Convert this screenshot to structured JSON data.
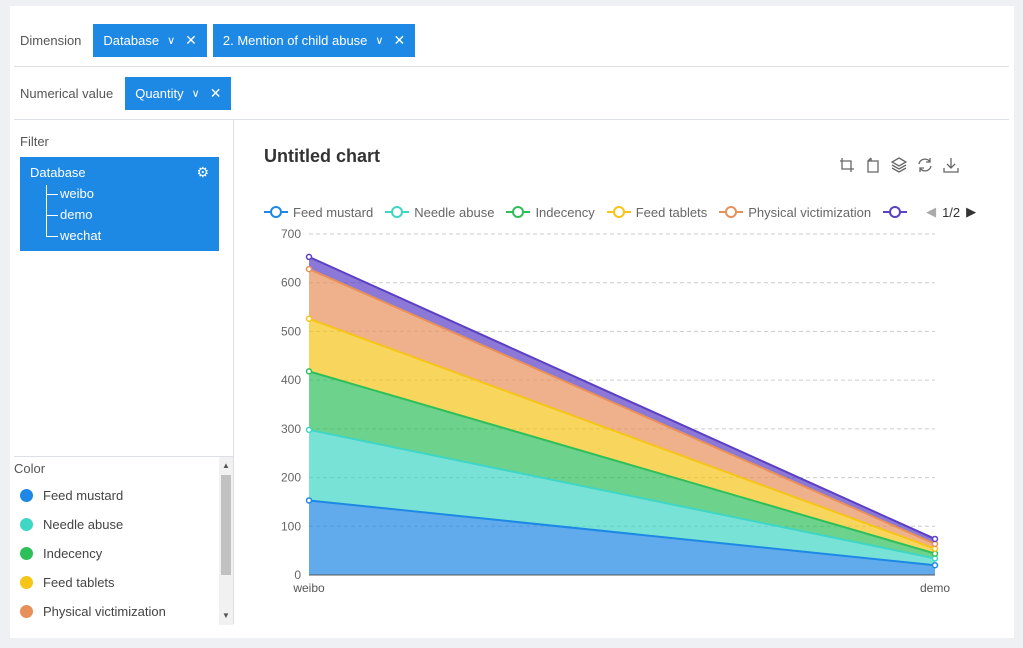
{
  "dimension": {
    "label": "Dimension",
    "pills": [
      "Database",
      "2. Mention of child abuse"
    ]
  },
  "numerical": {
    "label": "Numerical value",
    "pills": [
      "Quantity"
    ]
  },
  "filter": {
    "title": "Filter",
    "root": "Database",
    "children": [
      "weibo",
      "demo",
      "wechat"
    ]
  },
  "color_panel": {
    "title": "Color",
    "items": [
      {
        "label": "Feed mustard",
        "color": "#1e88e5"
      },
      {
        "label": "Needle abuse",
        "color": "#3fd6c5"
      },
      {
        "label": "Indecency",
        "color": "#2fbf5a"
      },
      {
        "label": "Feed tablets",
        "color": "#f5c518"
      },
      {
        "label": "Physical victimization",
        "color": "#e8905a"
      }
    ]
  },
  "toolbar": {
    "icons": [
      "zoom-icon",
      "zoom-reset-icon",
      "data-view-icon",
      "refresh-icon",
      "download-icon"
    ]
  },
  "legend_pager": "1/2",
  "chart_data": {
    "type": "area",
    "stacked": true,
    "title": "Untitled chart",
    "categories": [
      "weibo",
      "demo"
    ],
    "ylim": [
      0,
      700
    ],
    "yticks": [
      0,
      100,
      200,
      300,
      400,
      500,
      600,
      700
    ],
    "grid": true,
    "legend_position": "top-left",
    "series": [
      {
        "name": "Feed mustard",
        "color": "#1e88e5",
        "values": [
          153,
          20
        ]
      },
      {
        "name": "Needle abuse",
        "color": "#3fd6c5",
        "values": [
          145,
          14
        ]
      },
      {
        "name": "Indecency",
        "color": "#2fbf5a",
        "values": [
          120,
          10
        ]
      },
      {
        "name": "Feed tablets",
        "color": "#f5c518",
        "values": [
          108,
          10
        ]
      },
      {
        "name": "Physical victimization",
        "color": "#e8905a",
        "values": [
          102,
          10
        ]
      },
      {
        "name": "",
        "color": "#5b3fc4",
        "values": [
          25,
          10
        ]
      }
    ]
  }
}
